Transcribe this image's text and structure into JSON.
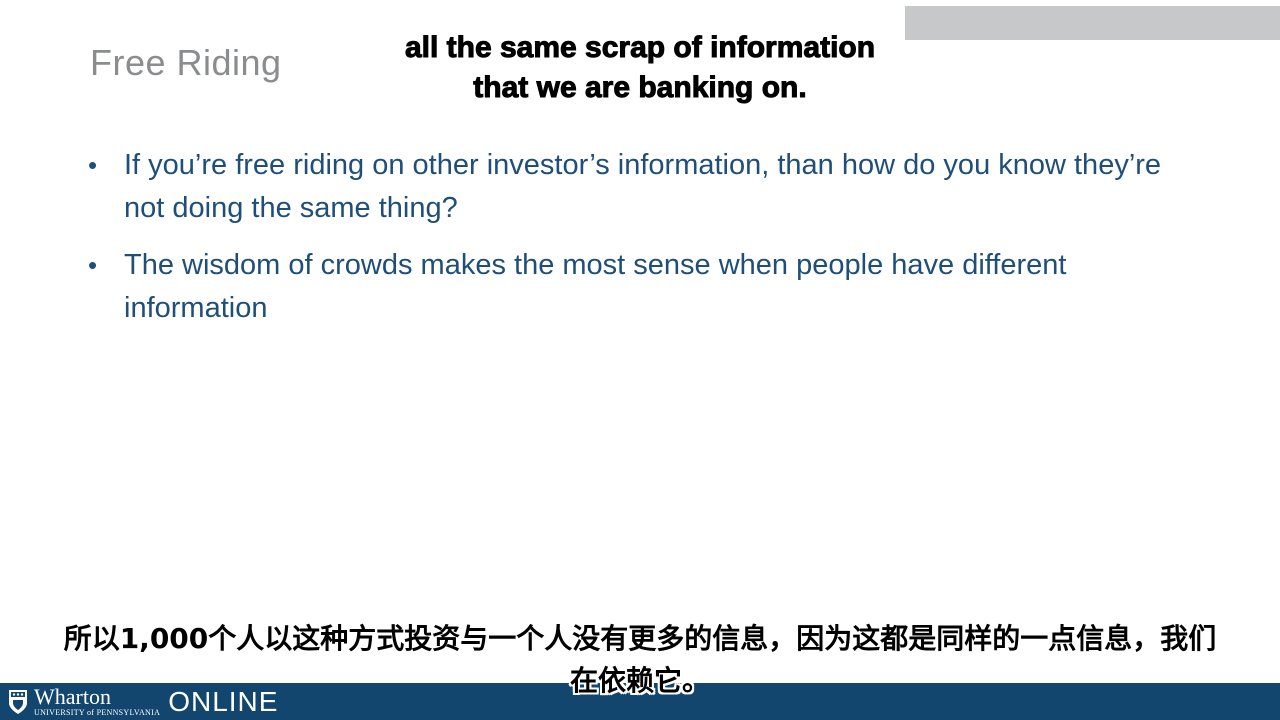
{
  "slide": {
    "title": "Free Riding",
    "bullets": [
      "If you’re free riding on other investor’s information, than how do you know they’re not doing the same thing?",
      "The wisdom of crowds makes the most sense when people have different information"
    ],
    "bullet_glyph": "•"
  },
  "subtitles": {
    "english": [
      "all the same scrap of information",
      "that we are banking on."
    ],
    "chinese": [
      "所以1,000个人以这种方式投资与一个人没有更多的信息，因为这都是同样的一点信息，我们",
      "在依赖它。"
    ]
  },
  "footer": {
    "brand_name": "Wharton",
    "brand_sub": "UNIVERSITY of PENNSYLVANIA",
    "brand_online": "ONLINE",
    "bar_color": "#12466f"
  },
  "colors": {
    "title": "#8a8c8e",
    "bullet_text": "#1f4e79",
    "corner_bar": "#c7c8ca"
  }
}
